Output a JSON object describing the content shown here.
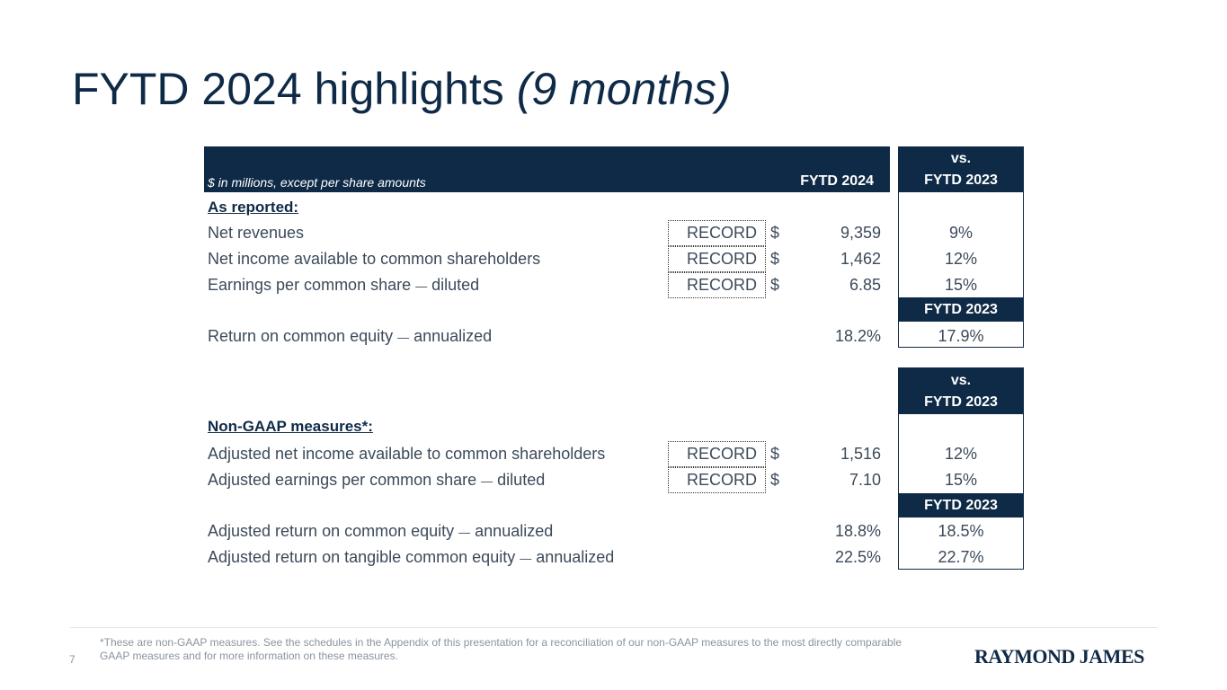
{
  "title": {
    "main": "FYTD 2024 highlights ",
    "sub": "(9 months)"
  },
  "table": {
    "units_note": "$ in millions, except per share amounts",
    "col_current": "FYTD 2024",
    "col_vs_line1": "vs.",
    "col_vs_line2": "FYTD 2023",
    "col_prior": "FYTD 2023"
  },
  "reported": {
    "heading": "As reported:",
    "rows": [
      {
        "label": "Net revenues",
        "badge": "RECORD",
        "currency": "$",
        "value": "9,359",
        "change": "9%"
      },
      {
        "label": "Net income available to common shareholders",
        "badge": "RECORD",
        "currency": "$",
        "value": "1,462",
        "change": "12%"
      },
      {
        "label": "Earnings per common share ",
        "dash": "—",
        "label_suffix": " diluted",
        "badge": "RECORD",
        "currency": "$",
        "value": "6.85",
        "change": "15%"
      }
    ],
    "roe": {
      "label": "Return on common equity ",
      "dash": "—",
      "label_suffix": " annualized",
      "value": "18.2%",
      "prior": "17.9%"
    }
  },
  "non_gaap": {
    "heading": "Non-GAAP measures*:",
    "rows": [
      {
        "label": "Adjusted net income available to common shareholders",
        "badge": "RECORD",
        "currency": "$",
        "value": "1,516",
        "change": "12%"
      },
      {
        "label": "Adjusted earnings per common share ",
        "dash": "—",
        "label_suffix": " diluted",
        "badge": "RECORD",
        "currency": "$",
        "value": "7.10",
        "change": "15%"
      }
    ],
    "roe": {
      "label": "Adjusted return on common equity ",
      "dash": "—",
      "label_suffix": " annualized",
      "value": "18.8%",
      "prior": "18.5%"
    },
    "rotce": {
      "label": "Adjusted return on tangible common equity ",
      "dash": "—",
      "label_suffix": " annualized",
      "value": "22.5%",
      "prior": "22.7%"
    }
  },
  "footer": {
    "page_number": "7",
    "footnote": "*These are non-GAAP measures. See the schedules in the Appendix of this presentation for a reconciliation of our non-GAAP measures to the most directly comparable GAAP measures and for more information on these measures.",
    "logo_text": "RAYMOND JAMES"
  },
  "colors": {
    "navy": "#0f2a47",
    "text": "#3c4a5a",
    "muted": "#8a94a0"
  }
}
